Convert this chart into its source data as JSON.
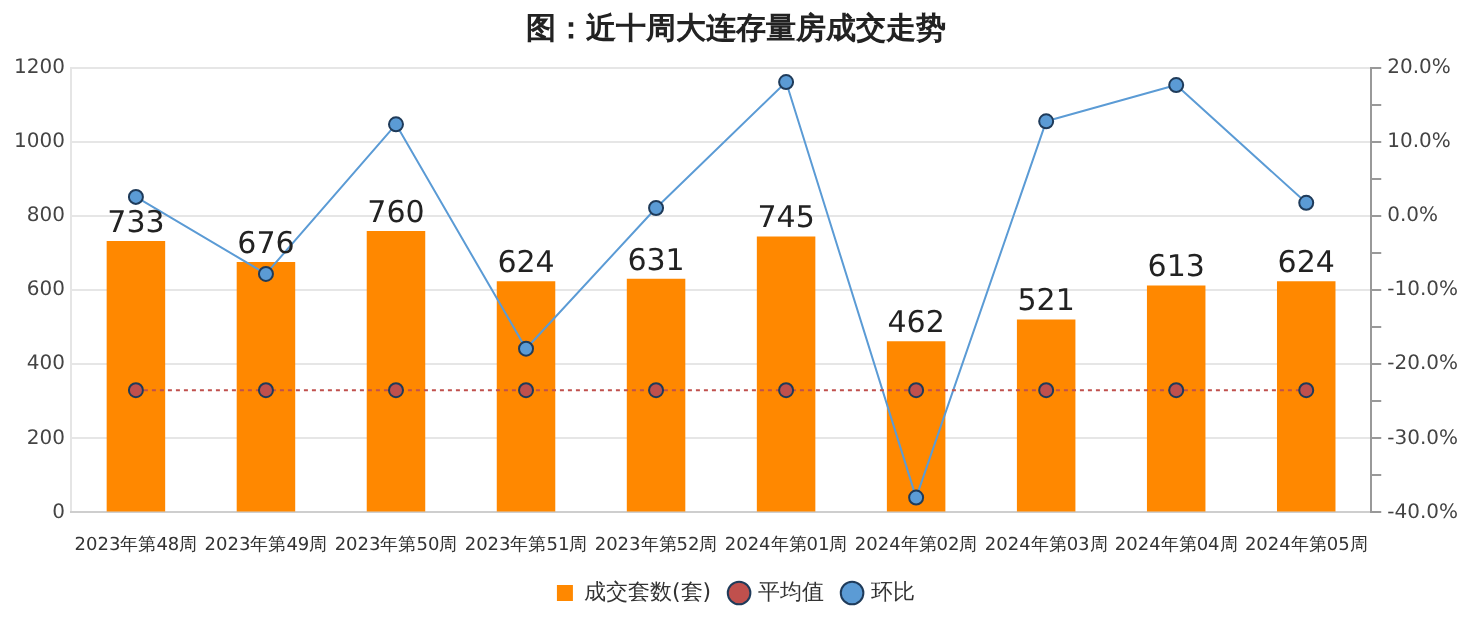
{
  "chart_data": {
    "type": "bar",
    "title": "图：近十周大连存量房成交走势",
    "categories": [
      "2023年第48周",
      "2023年第49周",
      "2023年第50周",
      "2023年第51周",
      "2023年第52周",
      "2024年第01周",
      "2024年第02周",
      "2024年第03周",
      "2024年第04周",
      "2024年第05周"
    ],
    "series": [
      {
        "name": "成交套数(套)",
        "color": "#ff8800",
        "values": [
          733,
          676,
          760,
          624,
          631,
          745,
          462,
          521,
          613,
          624
        ],
        "value_labels": [
          "733",
          "676",
          "760",
          "624",
          "631",
          "745",
          "462",
          "521",
          "613",
          "624"
        ]
      },
      {
        "name": "平均值",
        "type": "line",
        "color": "#c0504d",
        "line_style": "dotted",
        "marker": "circle",
        "values": [
          330,
          330,
          330,
          330,
          330,
          330,
          330,
          330,
          330,
          330
        ]
      },
      {
        "name": "环比",
        "type": "line",
        "axis": "y2",
        "color": "#5b9bd5",
        "line_style": "solid",
        "marker": "circle",
        "values": [
          2.6,
          -7.8,
          12.4,
          -17.9,
          1.1,
          18.1,
          -38.0,
          12.8,
          17.7,
          1.8
        ]
      }
    ],
    "ylim": [
      0,
      1200
    ],
    "yticks": [
      0,
      200,
      400,
      600,
      800,
      1000,
      1200
    ],
    "y2lim": [
      -40,
      20
    ],
    "y2ticks": [
      {
        "value": -40,
        "label": "-40.0%"
      },
      {
        "value": -35,
        "label": null
      },
      {
        "value": -30,
        "label": "-30.0%"
      },
      {
        "value": -25,
        "label": null
      },
      {
        "value": -20,
        "label": "-20.0%"
      },
      {
        "value": -15,
        "label": null
      },
      {
        "value": -10,
        "label": "-10.0%"
      },
      {
        "value": -5,
        "label": null
      },
      {
        "value": 0,
        "label": "0.0%"
      },
      {
        "value": 5,
        "label": null
      },
      {
        "value": 10,
        "label": "10.0%"
      },
      {
        "value": 15,
        "label": null
      },
      {
        "value": 20,
        "label": "20.0%"
      }
    ],
    "grid": "y",
    "legend": "bottom"
  }
}
